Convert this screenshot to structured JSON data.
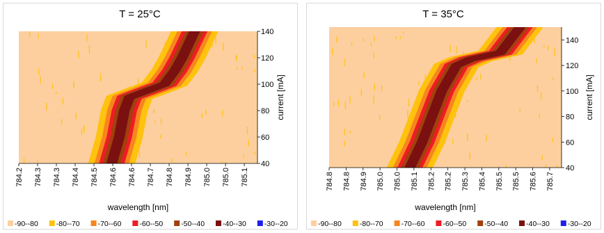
{
  "palette": [
    "#fdcf9e",
    "#ffc20e",
    "#f7861e",
    "#ee1c25",
    "#a0410d",
    "#7b1010",
    "#1f1ff0"
  ],
  "legend": [
    "-90--80",
    "-80--70",
    "-70--60",
    "-60--50",
    "-50--40",
    "-40--30",
    "-30--20"
  ],
  "chart_data": [
    {
      "type": "heatmap",
      "title": "T = 25°C",
      "xlabel": "wavelength [nm]",
      "ylabel": "current [mA]",
      "xlim": [
        784.2,
        785.15
      ],
      "ylim": [
        40,
        140
      ],
      "xticks": [
        "784.2",
        "784.3",
        "784.3",
        "784.4",
        "784.5",
        "784.6",
        "784.6",
        "784.7",
        "784.8",
        "784.9",
        "785.0",
        "785.0",
        "785.1"
      ],
      "yticks": [
        40,
        60,
        80,
        100,
        120,
        140
      ],
      "legend_entries": [
        "-90--80",
        "-80--70",
        "-70--60",
        "-60--50",
        "-50--40",
        "-40--30",
        "-30--20"
      ],
      "ridge": [
        {
          "current": 40,
          "wavelength": 784.57
        },
        {
          "current": 60,
          "wavelength": 784.6
        },
        {
          "current": 80,
          "wavelength": 784.62
        },
        {
          "current": 90,
          "wavelength": 784.64
        },
        {
          "current": 100,
          "wavelength": 784.78
        },
        {
          "current": 110,
          "wavelength": 784.82
        },
        {
          "current": 120,
          "wavelength": 784.85
        },
        {
          "current": 140,
          "wavelength": 784.9
        }
      ]
    },
    {
      "type": "heatmap",
      "title": "T = 35°C",
      "xlabel": "wavelength [nm]",
      "ylabel": "current [mA]",
      "xlim": [
        784.8,
        785.75
      ],
      "ylim": [
        40,
        150
      ],
      "xticks": [
        "784.8",
        "784.8",
        "784.9",
        "785.0",
        "785.0",
        "785.1",
        "785.2",
        "785.2",
        "785.3",
        "785.4",
        "785.5",
        "785.5",
        "785.6",
        "785.7"
      ],
      "yticks": [
        40,
        60,
        80,
        100,
        120,
        140
      ],
      "legend_entries": [
        "-90--80",
        "-80--70",
        "-70--60",
        "-60--50",
        "-50--40",
        "-40--30",
        "-30--20"
      ],
      "ridge": [
        {
          "current": 40,
          "wavelength": 785.13
        },
        {
          "current": 60,
          "wavelength": 785.18
        },
        {
          "current": 80,
          "wavelength": 785.22
        },
        {
          "current": 100,
          "wavelength": 785.26
        },
        {
          "current": 120,
          "wavelength": 785.32
        },
        {
          "current": 125,
          "wavelength": 785.38
        },
        {
          "current": 130,
          "wavelength": 785.5
        },
        {
          "current": 150,
          "wavelength": 785.58
        }
      ]
    }
  ]
}
